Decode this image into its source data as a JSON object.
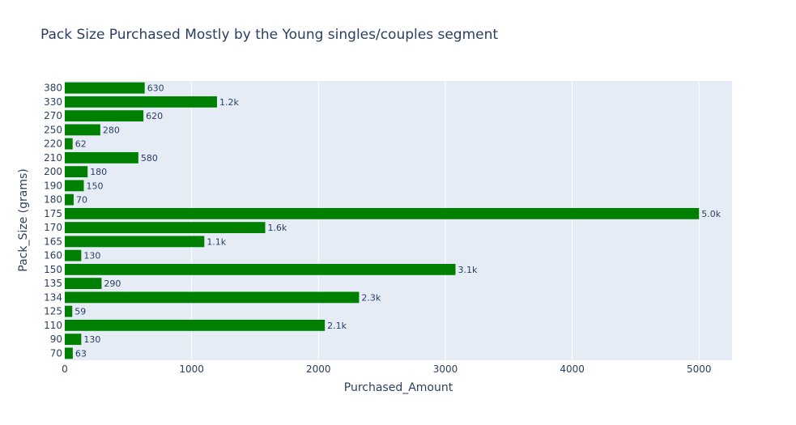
{
  "chart_data": {
    "type": "bar",
    "orientation": "horizontal",
    "title": "Pack Size Purchased Mostly by the Young singles/couples segment",
    "xlabel": "Purchased_Amount",
    "ylabel": "Pack_Size (grams)",
    "xlim": [
      0,
      5260
    ],
    "xticks": [
      0,
      1000,
      2000,
      3000,
      4000,
      5000
    ],
    "categories": [
      "70",
      "90",
      "110",
      "125",
      "134",
      "135",
      "150",
      "160",
      "165",
      "170",
      "175",
      "180",
      "190",
      "200",
      "210",
      "220",
      "250",
      "270",
      "330",
      "380"
    ],
    "values": [
      63,
      130,
      2050,
      59,
      2320,
      290,
      3080,
      130,
      1100,
      1580,
      5000,
      70,
      150,
      180,
      580,
      62,
      280,
      620,
      1200,
      630
    ],
    "data_labels": [
      "63",
      "130",
      "2.1k",
      "59",
      "2.3k",
      "290",
      "3.1k",
      "130",
      "1.1k",
      "1.6k",
      "5.0k",
      "70",
      "150",
      "180",
      "580",
      "62",
      "280",
      "620",
      "1.2k",
      "630"
    ],
    "bar_color": "#008000",
    "plot_background": "#e5ecf6",
    "grid": true
  }
}
